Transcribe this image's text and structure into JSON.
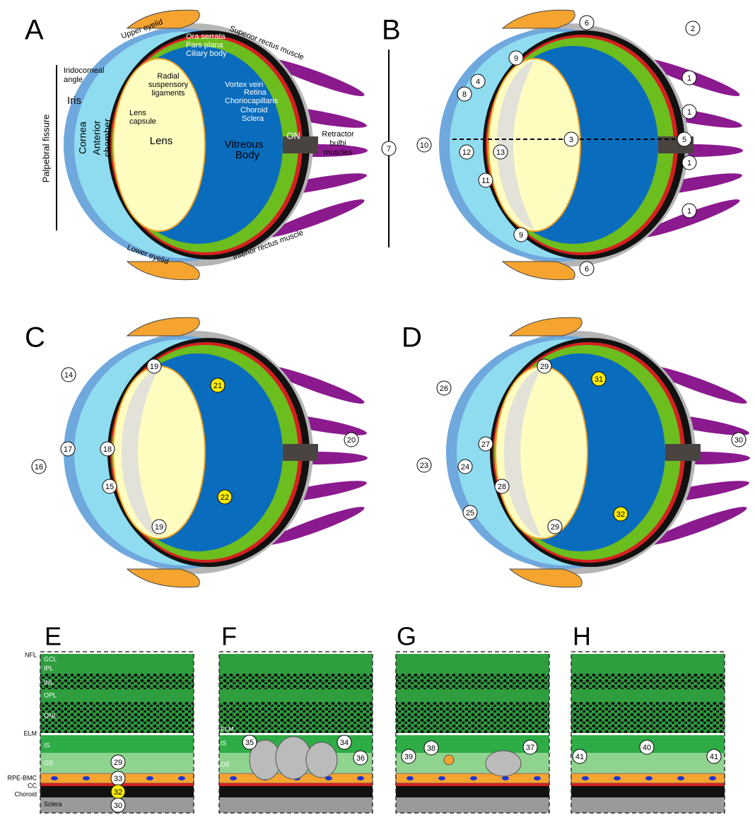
{
  "panel_a": {
    "letter": "A",
    "labels": {
      "upper_eyelid": "Upper eyelid",
      "superior_rectus": "Superior rectus muscle",
      "iridocorneal_angle": [
        "Iridocorneal",
        "angle"
      ],
      "ora_serrata": "Ora serrata",
      "pars_plana": "Pars plana",
      "ciliary_body": "Ciliary body",
      "suspensory": [
        "Radial",
        "suspensory",
        "ligaments"
      ],
      "iris": "Iris",
      "lens_capsule": [
        "Lens",
        "capsule"
      ],
      "vortex_vein": "Vortex vein",
      "retina": "Retina",
      "choriocapillaris": "Choriocapillaris",
      "choroid": "Choroid",
      "sclera": "Sclera",
      "palpebral_fissure": "Palpebral fissure",
      "cornea": "Cornea",
      "anterior_chamber": [
        "Anterior",
        "chamber"
      ],
      "lens": "Lens",
      "vitreous": [
        "Vitreous",
        "Body"
      ],
      "on": "ON",
      "retractor": [
        "Retractor",
        "bulbi",
        "muscles"
      ],
      "lower_eyelid": "Lower eyelid",
      "inferior_rectus": "Inferior rectus muscle"
    }
  },
  "panel_b": {
    "letter": "B",
    "callouts": [
      "1",
      "1",
      "1",
      "1",
      "2",
      "3",
      "4",
      "5",
      "6",
      "6",
      "7",
      "8",
      "9",
      "9",
      "10",
      "11",
      "12",
      "13"
    ]
  },
  "panel_c": {
    "letter": "C",
    "callouts": [
      "14",
      "15",
      "16",
      "17",
      "18",
      "19",
      "19",
      "20",
      "21",
      "22"
    ]
  },
  "panel_d": {
    "letter": "D",
    "callouts": [
      "23",
      "24",
      "25",
      "26",
      "27",
      "28",
      "29",
      "29",
      "30",
      "31",
      "32"
    ]
  },
  "panel_e": {
    "letter": "E",
    "labels": [
      "NFL",
      "GCL",
      "IPL",
      "INL",
      "OPL",
      "ONL",
      "ELM",
      "IS",
      "OS",
      "RPE-BMC",
      "CC",
      "Choroid",
      "Sclera"
    ],
    "callouts": [
      "29",
      "33",
      "32",
      "30"
    ]
  },
  "panel_f": {
    "letter": "F",
    "labels": [
      "ELM",
      "IS",
      "OS"
    ],
    "callouts": [
      "35",
      "34",
      "36"
    ]
  },
  "panel_g": {
    "letter": "G",
    "callouts": [
      "38",
      "39",
      "37"
    ]
  },
  "panel_h": {
    "letter": "H",
    "callouts": [
      "41",
      "40",
      "41"
    ]
  }
}
